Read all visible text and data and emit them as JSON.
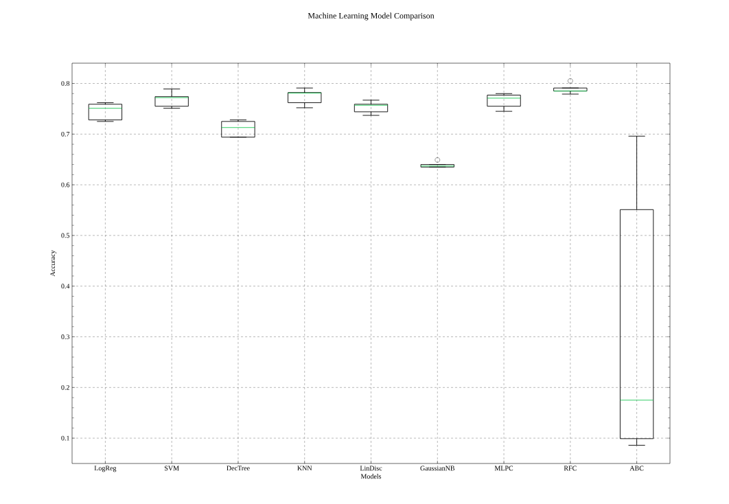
{
  "chart_data": {
    "type": "box",
    "title": "Machine Learning Model Comparison",
    "xlabel": "Models",
    "ylabel": "Accuracy",
    "categories": [
      "LogReg",
      "SVM",
      "DecTree",
      "KNN",
      "LinDisc",
      "GaussianNB",
      "MLPC",
      "RFC",
      "ABC"
    ],
    "series": [
      {
        "color": "#000000",
        "boxes": [
          {
            "low": 0.725,
            "q1": 0.728,
            "median": 0.751,
            "q3": 0.759,
            "high": 0.762
          },
          {
            "low": 0.751,
            "q1": 0.755,
            "median": 0.772,
            "q3": 0.774,
            "high": 0.789
          },
          {
            "low": 0.694,
            "q1": 0.694,
            "median": 0.713,
            "q3": 0.725,
            "high": 0.728
          },
          {
            "low": 0.752,
            "q1": 0.762,
            "median": 0.781,
            "q3": 0.782,
            "high": 0.791
          },
          {
            "low": 0.737,
            "q1": 0.744,
            "median": 0.757,
            "q3": 0.759,
            "high": 0.767
          },
          {
            "low": 0.635,
            "q1": 0.635,
            "median": 0.637,
            "q3": 0.64,
            "high": 0.64,
            "outliers": [
              0.649
            ]
          },
          {
            "low": 0.745,
            "q1": 0.755,
            "median": 0.771,
            "q3": 0.777,
            "high": 0.78
          },
          {
            "low": 0.779,
            "q1": 0.785,
            "median": 0.785,
            "q3": 0.791,
            "high": 0.791,
            "outliers": [
              0.805
            ]
          },
          {
            "low": 0.086,
            "q1": 0.099,
            "median": 0.175,
            "q3": 0.551,
            "high": 0.696
          }
        ]
      }
    ],
    "ylim": [
      0.05,
      0.84
    ],
    "yticks": [
      0.1,
      0.2,
      0.3,
      0.4,
      0.5,
      0.6,
      0.7,
      0.8
    ],
    "grid": true
  }
}
